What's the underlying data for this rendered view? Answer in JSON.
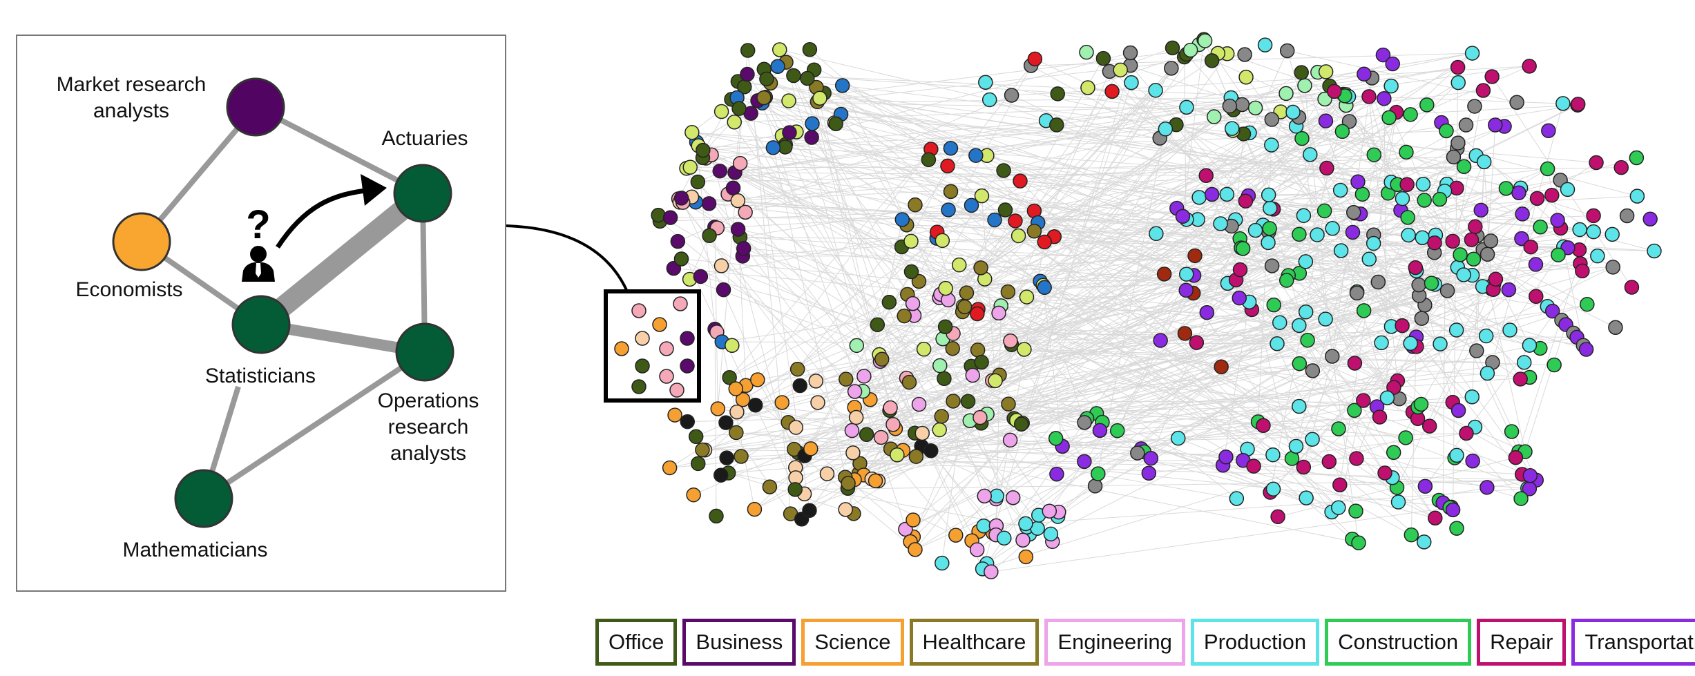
{
  "inset": {
    "labels": {
      "market_research_line1": "Market research",
      "market_research_line2": "analysts",
      "actuaries": "Actuaries",
      "economists": "Economists",
      "statisticians": "Statisticians",
      "operations_line1": "Operations",
      "operations_line2": "research",
      "operations_line3": "analysts",
      "mathematicians": "Mathematicians"
    },
    "question_mark": "?",
    "icons": [
      "person-icon",
      "curved-arrow-icon"
    ]
  },
  "legend": [
    {
      "label": "Office",
      "color": "#3f5a16"
    },
    {
      "label": "Business",
      "color": "#5a0a6a"
    },
    {
      "label": "Science",
      "color": "#f5a031"
    },
    {
      "label": "Healthcare",
      "color": "#8a7a25"
    },
    {
      "label": "Engineering",
      "color": "#eea4ea"
    },
    {
      "label": "Production",
      "color": "#5de4e8"
    },
    {
      "label": "Construction",
      "color": "#2ecc55"
    },
    {
      "label": "Repair",
      "color": "#c0106f"
    },
    {
      "label": "Transportation",
      "color": "#8a2be2"
    }
  ],
  "colors": {
    "inset_green": "#045c36",
    "inset_purple": "#520463",
    "inset_orange": "#f9a630",
    "edge_gray": "#999999",
    "network_edge": "#d9d9d9",
    "other_nodes": [
      "#2475c8",
      "#e01a20",
      "#1a1a1a",
      "#f5a8b8",
      "#f7d0a8",
      "#d2e86a",
      "#a0f0b0",
      "#a02a10",
      "#888888"
    ]
  }
}
